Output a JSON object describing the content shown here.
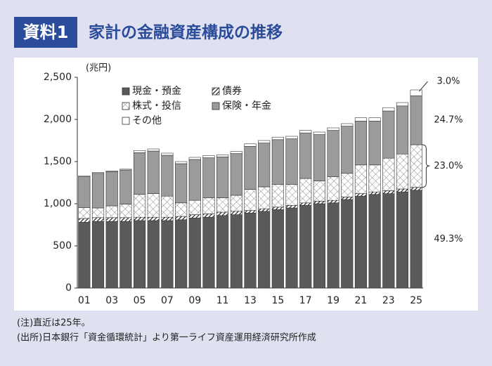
{
  "chart_data": {
    "type": "stacked-bar",
    "figure_label": "資料1",
    "title": "家計の金融資産構成の推移",
    "y_unit": "(兆円)",
    "categories": [
      "01",
      null,
      "03",
      null,
      "05",
      null,
      "07",
      null,
      "09",
      null,
      "11",
      null,
      "13",
      null,
      "15",
      null,
      "17",
      null,
      "19",
      null,
      "21",
      null,
      "23",
      null,
      "25"
    ],
    "series": [
      {
        "name": "現金・預金",
        "color": "#5a5a5a",
        "values": [
          780,
          790,
          790,
          790,
          800,
          800,
          800,
          810,
          830,
          840,
          860,
          870,
          890,
          910,
          930,
          950,
          980,
          1000,
          1010,
          1050,
          1090,
          1110,
          1120,
          1140,
          1160
        ]
      },
      {
        "name": "債券",
        "color": "#222222",
        "pattern": "hatch",
        "values": [
          45,
          45,
          45,
          45,
          40,
          40,
          40,
          40,
          40,
          40,
          40,
          40,
          30,
          30,
          30,
          30,
          30,
          30,
          30,
          30,
          30,
          30,
          35,
          35,
          35
        ]
      },
      {
        "name": "株式・投信",
        "color": "#8a8a8a",
        "pattern": "crosshatch",
        "values": [
          130,
          115,
          140,
          160,
          270,
          280,
          250,
          160,
          170,
          190,
          170,
          190,
          250,
          260,
          270,
          250,
          290,
          240,
          280,
          280,
          340,
          320,
          385,
          415,
          505
        ]
      },
      {
        "name": "保険・年金",
        "color": "#9b9b9b",
        "values": [
          365,
          410,
          405,
          405,
          495,
          505,
          485,
          465,
          485,
          475,
          485,
          495,
          510,
          520,
          530,
          540,
          540,
          550,
          550,
          560,
          520,
          520,
          560,
          570,
          580
        ]
      },
      {
        "name": "その他",
        "color": "#ffffff",
        "values": [
          10,
          10,
          10,
          10,
          25,
          25,
          25,
          25,
          25,
          25,
          25,
          25,
          30,
          30,
          30,
          30,
          30,
          30,
          30,
          30,
          40,
          40,
          40,
          40,
          70
        ]
      }
    ],
    "annotations": [
      "3.0%",
      "24.7%",
      "23.0%",
      "49.3%"
    ],
    "ylim": [
      0,
      2500
    ],
    "yticks": [
      0,
      500,
      {
        "value": 1000,
        "label": "1,000"
      },
      {
        "value": 1500,
        "label": "1,500"
      },
      {
        "value": 2000,
        "label": "2,000"
      },
      {
        "value": 2500,
        "label": "2,500"
      }
    ],
    "grid": false
  },
  "notes": [
    "(注)直近は25年。",
    "(出所)日本銀行「資金循環統計」より第一ライフ資産運用経済研究所作成"
  ]
}
